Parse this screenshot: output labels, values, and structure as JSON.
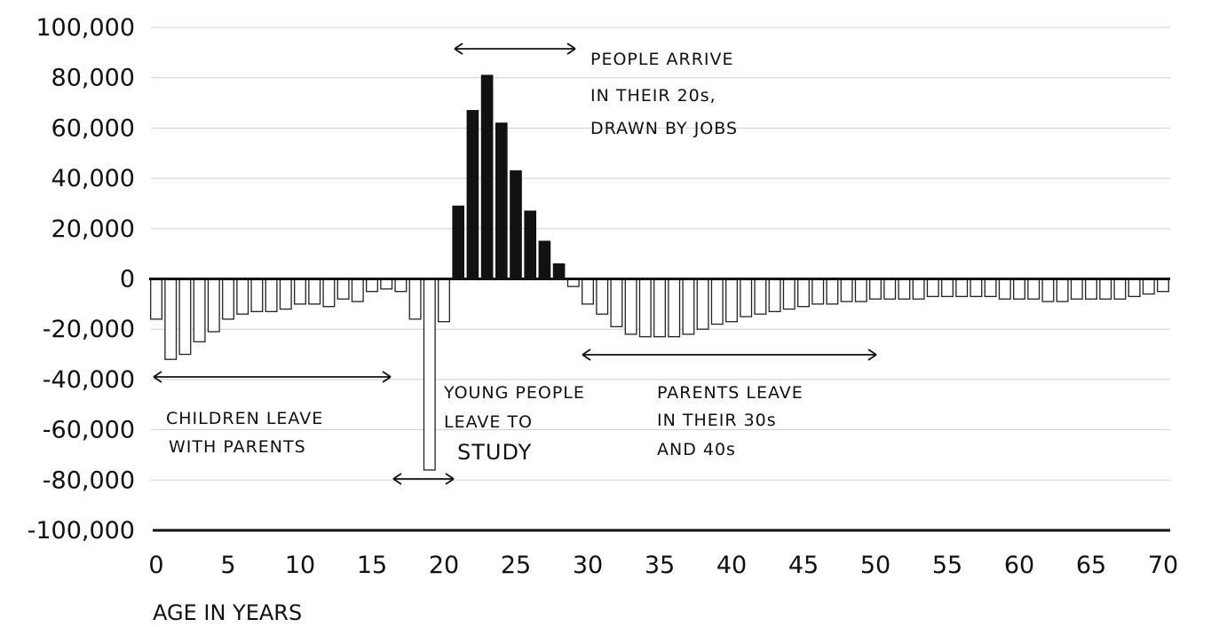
{
  "chart_data": {
    "type": "bar",
    "xlabel": "AGE IN YEARS",
    "ylabel": "",
    "ylim": [
      -100000,
      100000
    ],
    "yticks": [
      100000,
      80000,
      60000,
      40000,
      20000,
      0,
      -20000,
      -40000,
      -60000,
      -80000,
      -100000
    ],
    "ytick_labels": [
      "100,000",
      "80,000",
      "60,000",
      "40,000",
      "20,000",
      "0",
      "-20,000",
      "-40,000",
      "-60,000",
      "-80,000",
      "-100,000"
    ],
    "xlim": [
      0,
      70
    ],
    "xticks": [
      0,
      5,
      10,
      15,
      20,
      25,
      30,
      35,
      40,
      45,
      50,
      55,
      60,
      65,
      70
    ],
    "xtick_labels": [
      "0",
      "5",
      "10",
      "15",
      "20",
      "25",
      "30",
      "35",
      "40",
      "45",
      "50",
      "55",
      "60",
      "65",
      "70"
    ],
    "grid": true,
    "categories": [
      0,
      1,
      2,
      3,
      4,
      5,
      6,
      7,
      8,
      9,
      10,
      11,
      12,
      13,
      14,
      15,
      16,
      17,
      18,
      19,
      20,
      21,
      22,
      23,
      24,
      25,
      26,
      27,
      28,
      29,
      30,
      31,
      32,
      33,
      34,
      35,
      36,
      37,
      38,
      39,
      40,
      41,
      42,
      43,
      44,
      45,
      46,
      47,
      48,
      49,
      50,
      51,
      52,
      53,
      54,
      55,
      56,
      57,
      58,
      59,
      60,
      61,
      62,
      63,
      64,
      65,
      66,
      67,
      68,
      69,
      70
    ],
    "values": [
      -16000,
      -32000,
      -30000,
      -25000,
      -21000,
      -16000,
      -14000,
      -13000,
      -13000,
      -12000,
      -10000,
      -10000,
      -11000,
      -8000,
      -9000,
      -5000,
      -4000,
      -5000,
      -16000,
      -76000,
      -17000,
      29000,
      67000,
      81000,
      62000,
      43000,
      27000,
      15000,
      6000,
      -3000,
      -10000,
      -14000,
      -19000,
      -22000,
      -23000,
      -23000,
      -23000,
      -22000,
      -20000,
      -18000,
      -17000,
      -15000,
      -14000,
      -13000,
      -12000,
      -11000,
      -10000,
      -10000,
      -9000,
      -9000,
      -8000,
      -8000,
      -8000,
      -8000,
      -7000,
      -7000,
      -7000,
      -7000,
      -7000,
      -8000,
      -8000,
      -8000,
      -9000,
      -9000,
      -8000,
      -8000,
      -8000,
      -8000,
      -7000,
      -6000,
      -5000
    ],
    "annotations": [
      {
        "lines": [
          "PEOPLE ARRIVE",
          "IN THEIR 20s,",
          "DRAWN BY JOBS"
        ],
        "x_range": [
          20.5,
          29
        ]
      },
      {
        "lines": [
          "CHILDREN LEAVE",
          "WITH PARENTS"
        ],
        "x_range": [
          0,
          16.5
        ]
      },
      {
        "lines": [
          "YOUNG PEOPLE",
          "LEAVE TO",
          "STUDY"
        ],
        "x_range": [
          16.5,
          20.5
        ]
      },
      {
        "lines": [
          "PARENTS LEAVE",
          "IN THEIR 30s",
          "AND 40s"
        ],
        "x_range": [
          29.5,
          50
        ]
      }
    ]
  }
}
